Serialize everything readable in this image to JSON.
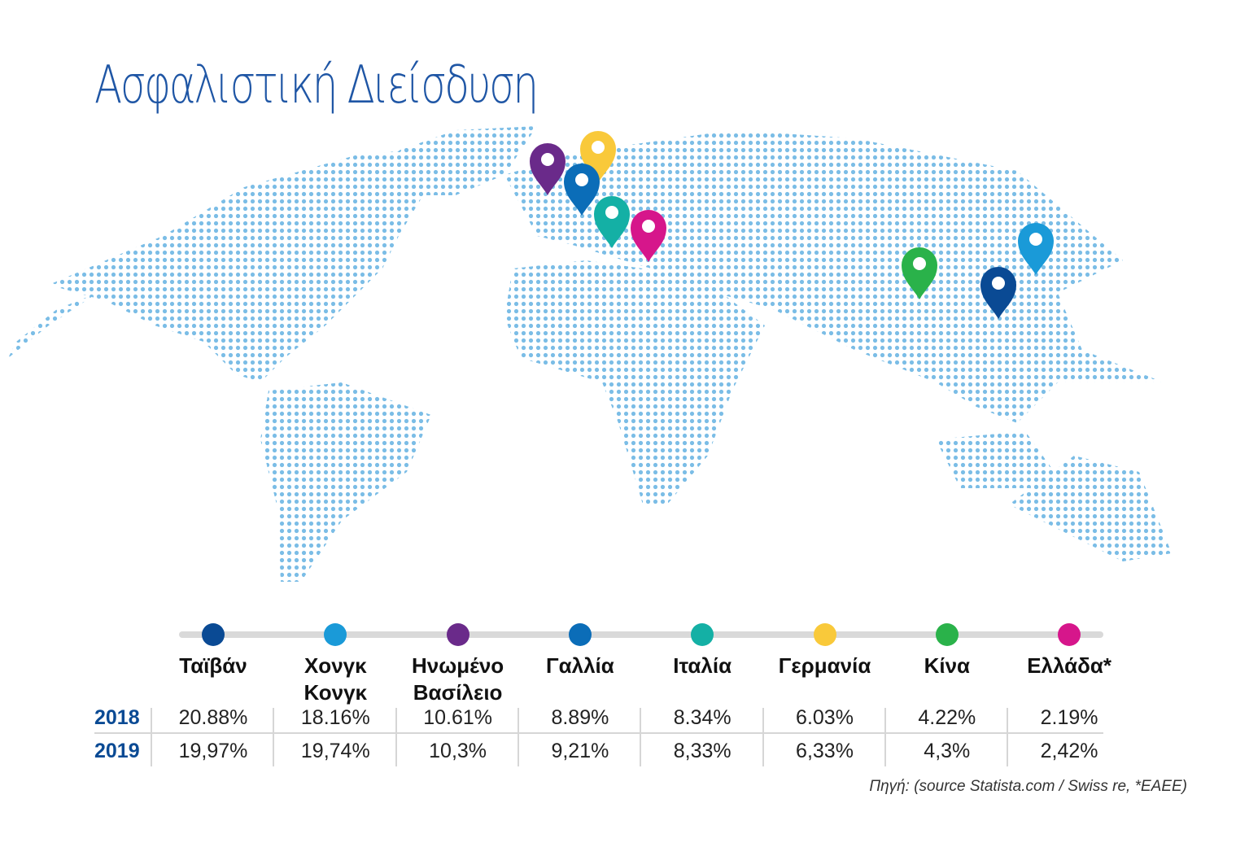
{
  "title": "Ασφαλιστική Διείσδυση",
  "colors": {
    "title": "#1f56a5",
    "map_dots": "#7bbde6",
    "year_labels": "#0a4a94"
  },
  "chart_data": {
    "type": "table",
    "row_labels": [
      "2018",
      "2019"
    ],
    "columns": [
      {
        "name": "Ταϊβάν",
        "color": "#0a4a94",
        "v2018": "20.88%",
        "v2019": "19,97%",
        "pin": "Taiwan"
      },
      {
        "name": "Χονγκ Κονγκ",
        "color": "#1a9ad8",
        "v2018": "18.16%",
        "v2019": "19,74%",
        "pin": "Hong Kong"
      },
      {
        "name": "Ηνωμένο Βασίλειο",
        "color": "#6a2a8a",
        "v2018": "10.61%",
        "v2019": "10,3%",
        "pin": "United Kingdom"
      },
      {
        "name": "Γαλλία",
        "color": "#0b6db8",
        "v2018": "8.89%",
        "v2019": "9,21%",
        "pin": "France"
      },
      {
        "name": "Ιταλία",
        "color": "#14b0a5",
        "v2018": "8.34%",
        "v2019": "8,33%",
        "pin": "Italy"
      },
      {
        "name": "Γερμανία",
        "color": "#f9c93a",
        "v2018": "6.03%",
        "v2019": "6,33%",
        "pin": "Germany"
      },
      {
        "name": "Κίνα",
        "color": "#2ab24a",
        "v2018": "4.22%",
        "v2019": "4,3%",
        "pin": "China"
      },
      {
        "name": "Ελλάδα*",
        "color": "#d6168b",
        "v2018": "2.19%",
        "v2019": "2,42%",
        "pin": "Greece"
      }
    ]
  },
  "source": "Πηγή: (source Statista.com / Swiss re, *EAEE)"
}
